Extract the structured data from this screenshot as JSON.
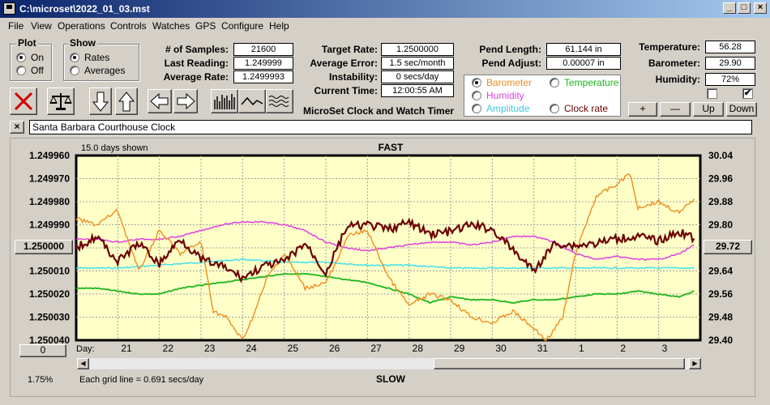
{
  "window": {
    "title": "C:\\microset\\2022_01_03.mst"
  },
  "menu": [
    "File",
    "View",
    "Operations",
    "Controls",
    "Watches",
    "GPS",
    "Configure",
    "Help"
  ],
  "plot": {
    "label": "Plot",
    "on": "On",
    "off": "Off",
    "selected": "On"
  },
  "show": {
    "label": "Show",
    "rates": "Rates",
    "averages": "Averages",
    "selected": "Rates"
  },
  "stats": {
    "samples_label": "# of Samples:",
    "samples": "21600",
    "last_label": "Last Reading:",
    "last": "1.249999",
    "avg_label": "Average Rate:",
    "avg": "1.2499993"
  },
  "rates": {
    "target_label": "Target Rate:",
    "target": "1.2500000",
    "avgerr_label": "Average Error:",
    "avgerr": "1.5 sec/month",
    "instab_label": "Instability:",
    "instab": "0 secs/day",
    "time_label": "Current Time:",
    "time": "12:00:55 AM"
  },
  "pend": {
    "length_label": "Pend Length:",
    "length": "61.144 in",
    "adjust_label": "Pend Adjust:",
    "adjust": "0.00007 in"
  },
  "overlay": {
    "barometer": "Barometer",
    "temperature": "Temperature",
    "humidity": "Humidity",
    "amplitude": "Amplitude",
    "clock_rate": "Clock rate",
    "selected": "Barometer"
  },
  "env": {
    "temp_label": "Temperature:",
    "temp": "56.28",
    "baro_label": "Barometer:",
    "baro": "29.90",
    "hum_label": "Humidity:",
    "hum": "72%"
  },
  "checkbox_right_checked": "✔",
  "env_buttons": {
    "plus": "+",
    "minus": "—",
    "up": "Up",
    "down": "Down"
  },
  "app_caption": "MicroSet Clock and Watch Timer",
  "description": "Santa Barbara Courthouse Clock",
  "close_x": "×",
  "chart_ui": {
    "days_shown": "15.0 days shown",
    "fast": "FAST",
    "slow": "SLOW",
    "day_label": "Day:",
    "grid_note": "Each grid line = 0.691 secs/day",
    "percent": "1.75%",
    "center_left_btn": "1.250000",
    "center_right_btn": "29.72",
    "offset_btn": "0"
  },
  "colors": {
    "rate": "#6b0000",
    "barometer": "#f08c1e",
    "humidity": "#e040e0",
    "amplitude": "#40e0f0",
    "temperature": "#1eb41e",
    "plot_bg": "#ffffc8"
  },
  "chart_data": {
    "type": "line",
    "title": "",
    "xlabel": "Day:",
    "x_ticks": [
      "21",
      "22",
      "23",
      "24",
      "25",
      "26",
      "27",
      "28",
      "29",
      "30",
      "31",
      "1",
      "2",
      "3"
    ],
    "y_left": {
      "ticks": [
        "1.249960",
        "1.249970",
        "1.249980",
        "1.249990",
        "1.250000",
        "1.250010",
        "1.250020",
        "1.250030",
        "1.250040"
      ],
      "lim": [
        1.24996,
        1.25004
      ],
      "reversed": true
    },
    "y_right": {
      "ticks": [
        "30.04",
        "29.96",
        "29.88",
        "29.80",
        "29.72",
        "29.64",
        "29.56",
        "29.48",
        "29.40"
      ],
      "lim": [
        29.4,
        30.04
      ]
    },
    "x_range": [
      20,
      35
    ],
    "series": [
      {
        "key": "rate",
        "axis": "left",
        "x": [
          20,
          20.5,
          21,
          21.5,
          22,
          22.5,
          23,
          23.5,
          24,
          24.5,
          25,
          25.5,
          26,
          26.5,
          27,
          27.5,
          28,
          28.5,
          29,
          29.5,
          30,
          30.5,
          31,
          31.5,
          32,
          32.5,
          33,
          33.5,
          34,
          34.5,
          34.85
        ],
        "y": [
          1.25,
          1.249995,
          1.250006,
          1.249998,
          1.250007,
          1.249996,
          1.250005,
          1.250008,
          1.250013,
          1.250008,
          1.250006,
          1.249998,
          1.250011,
          1.249991,
          1.24999,
          1.249992,
          1.249989,
          1.249994,
          1.249993,
          1.24999,
          1.249992,
          1.250001,
          1.25001,
          1.249998,
          1.249999,
          1.249998,
          1.249996,
          1.249995,
          1.249997,
          1.249993,
          1.249996
        ]
      },
      {
        "key": "barometer",
        "axis": "right",
        "x": [
          20,
          20.5,
          21,
          21.5,
          22,
          22.5,
          23,
          23.3,
          23.6,
          24,
          24.3,
          24.6,
          25,
          25.5,
          26,
          26.3,
          26.5,
          27,
          27.5,
          28,
          28.5,
          29,
          29.5,
          30,
          30.5,
          31,
          31.3,
          31.7,
          32,
          32.5,
          33,
          33.3,
          33.5,
          34,
          34.5,
          34.85
        ],
        "y": [
          29.82,
          29.8,
          29.85,
          29.64,
          29.78,
          29.7,
          29.74,
          29.5,
          29.48,
          29.4,
          29.5,
          29.62,
          29.7,
          29.58,
          29.6,
          29.68,
          29.76,
          29.78,
          29.62,
          29.52,
          29.56,
          29.54,
          29.48,
          29.46,
          29.5,
          29.44,
          29.4,
          29.48,
          29.7,
          29.9,
          29.94,
          29.98,
          29.86,
          29.88,
          29.84,
          29.89
        ]
      },
      {
        "key": "humidity",
        "axis": "right",
        "x": [
          20,
          20.5,
          21,
          21.5,
          22,
          22.5,
          23,
          23.5,
          24,
          24.5,
          25,
          25.5,
          26,
          26.5,
          27,
          27.5,
          28,
          28.5,
          29,
          29.5,
          30,
          30.5,
          31,
          31.5,
          32,
          32.5,
          33,
          33.5,
          34,
          34.5,
          34.85
        ],
        "y": [
          29.75,
          29.75,
          29.74,
          29.75,
          29.75,
          29.76,
          29.78,
          29.8,
          29.81,
          29.81,
          29.8,
          29.78,
          29.74,
          29.72,
          29.71,
          29.72,
          29.73,
          29.74,
          29.74,
          29.73,
          29.74,
          29.76,
          29.76,
          29.74,
          29.7,
          29.68,
          29.69,
          29.68,
          29.68,
          29.7,
          29.73
        ]
      },
      {
        "key": "amplitude",
        "axis": "right",
        "x": [
          20,
          21,
          22,
          23,
          24,
          25,
          26,
          27,
          28,
          29,
          30,
          31,
          32,
          33,
          34,
          34.85
        ],
        "y": [
          29.65,
          29.65,
          29.66,
          29.67,
          29.68,
          29.67,
          29.67,
          29.66,
          29.66,
          29.65,
          29.65,
          29.65,
          29.65,
          29.65,
          29.65,
          29.65
        ]
      },
      {
        "key": "temperature",
        "axis": "right",
        "x": [
          20,
          20.5,
          21,
          21.5,
          22,
          22.5,
          23,
          23.5,
          24,
          24.5,
          25,
          25.5,
          26,
          26.5,
          27,
          27.5,
          28,
          28.5,
          29,
          29.5,
          30,
          30.5,
          31,
          31.5,
          32,
          32.5,
          33,
          33.5,
          34,
          34.5,
          34.85
        ],
        "y": [
          29.58,
          29.58,
          29.57,
          29.56,
          29.56,
          29.58,
          29.59,
          29.6,
          29.61,
          29.62,
          29.63,
          29.63,
          29.62,
          29.61,
          29.6,
          29.58,
          29.56,
          29.53,
          29.55,
          29.54,
          29.54,
          29.53,
          29.54,
          29.54,
          29.55,
          29.56,
          29.56,
          29.57,
          29.56,
          29.55,
          29.57
        ]
      }
    ]
  }
}
